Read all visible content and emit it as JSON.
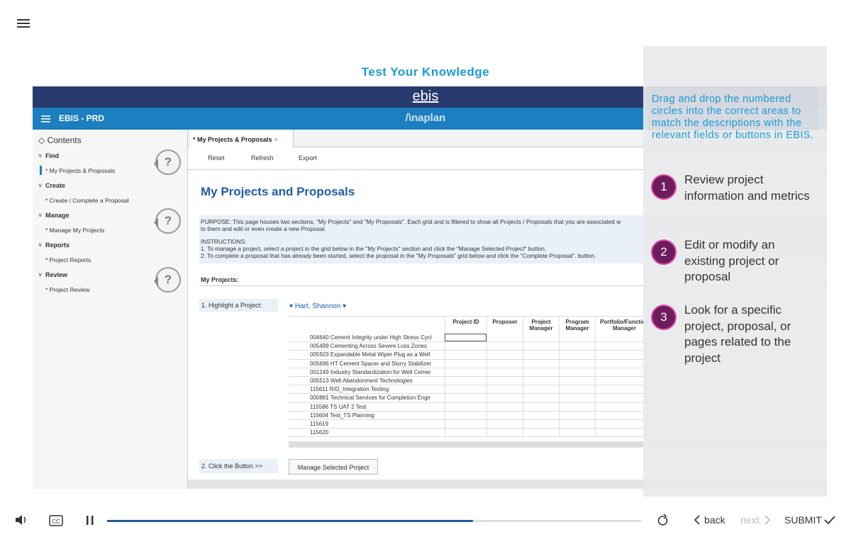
{
  "header": {
    "title": "Test Your Knowledge"
  },
  "app": {
    "logo": "ebis",
    "nav_title": "EBIS - PRD",
    "brand": "/\\naplan",
    "sidebar": {
      "heading": "Contents",
      "sections": [
        {
          "name": "Find",
          "items": [
            "* My Projects & Proposals"
          ]
        },
        {
          "name": "Create",
          "items": [
            "* Create / Complete a Proposal"
          ]
        },
        {
          "name": "Manage",
          "items": [
            "* Manage My Projects"
          ]
        },
        {
          "name": "Reports",
          "items": [
            "* Project Reports"
          ]
        },
        {
          "name": "Review",
          "items": [
            "* Project Review"
          ]
        }
      ]
    },
    "hotspots": [
      "?",
      "?",
      "?"
    ],
    "tab": "* My Projects & Proposals",
    "toolbar": [
      "Reset",
      "Refresh",
      "Export"
    ],
    "heading": "My Projects and Proposals",
    "purpose": [
      "PURPOSE: This page houses two sections, \"My Projects\" and \"My Proposals\". Each grid and is filtered to show all Projects / Proposals that you are associated w",
      "to them and edit or even create a new Proposal."
    ],
    "instructions": [
      "INSTRUCTIONS:",
      "1. To manage a project, select a project in the grid below in the \"My Projects\" section and click the \"Manage Selected Project\" button.",
      "2. To complete a proposal that has already been started, select the proposal in the \"My Proposals\" grid below and click the \"Complete Proposal\". button."
    ],
    "section": "My Projects:",
    "step1": "1. Highlight a Project:",
    "user": "Hart, Shannon",
    "table": {
      "columns": [
        "Project ID",
        "Proposer",
        "Project Manager",
        "Program Manager",
        "Portfolio/Function Manager"
      ],
      "rows": [
        "004640 Cement Integrity under High Stress Cycl",
        "005499 Cementing Across Severe Loss Zones",
        "005503 Expandable Metal Wiper Plug as a Well",
        "005696 HT Cement Spacer and Slurry Stabilizer",
        "001249 Industry Standardization for Well Cemer",
        "005513 Well Abandonment Technologies",
        "115611 R/D_Integration Testing",
        "000881 Technical Services for Completion Engir",
        "115586 TS UAT 2 Test",
        "115604 Test_TS Planning",
        "115619",
        "115620"
      ]
    },
    "step2": "2. Click the Button >>",
    "button": "Manage Selected Project"
  },
  "panel": {
    "instruction": "Drag and drop the numbered circles into the correct areas to match the descriptions with the relevant fields or buttons in EBIS.",
    "items": [
      {
        "number": "1",
        "text": "Review project information and metrics"
      },
      {
        "number": "2",
        "text": "Edit or modify an existing project or proposal"
      },
      {
        "number": "3",
        "text": "Look for a specific project, proposal, or pages related to the project"
      }
    ]
  },
  "controls": {
    "back": "back",
    "next": "next",
    "submit": "SUBMIT",
    "progress": 68.5
  }
}
